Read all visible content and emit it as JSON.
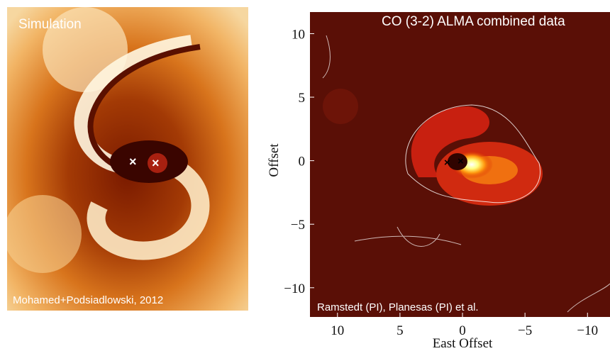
{
  "left_panel": {
    "title": "Simulation",
    "credit": "Mohamed+Podsiadlowski, 2012"
  },
  "right_panel": {
    "title": "CO (3-2) ALMA combined data",
    "credit": "Ramstedt (PI), Planesas (PI) et al.",
    "x_label": "East Offset",
    "y_label": "Offset",
    "xlim": [
      12.2,
      -11.8
    ],
    "ylim": [
      -12.3,
      11.7
    ],
    "xticks": [
      10,
      5,
      0,
      {
        "value": -5,
        "label": "−5"
      },
      {
        "value": -10,
        "label": "−10"
      }
    ],
    "yticks": [
      10,
      5,
      0,
      {
        "value": -5,
        "label": "−5"
      },
      {
        "value": -10,
        "label": "−10"
      }
    ]
  }
}
